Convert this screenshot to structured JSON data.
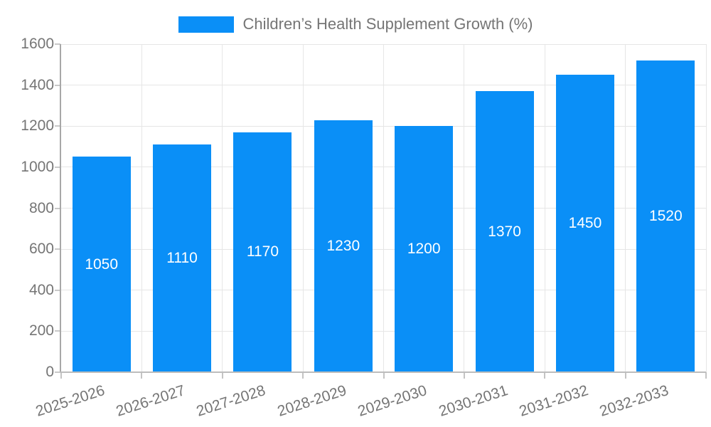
{
  "legend": {
    "label": "Children’s Health Supplement Growth (%)"
  },
  "colors": {
    "bar": "#0a8ff7",
    "axis_text": "#757575",
    "bar_label_text": "#ffffff",
    "gridline": "#e6e6e6",
    "y_axis_line": "#a8a8a8",
    "x_axis_line": "#bdbdbd"
  },
  "chart_data": {
    "type": "bar",
    "title": "Children’s Health Supplement Growth (%)",
    "categories": [
      "2025-2026",
      "2026-2027",
      "2027-2028",
      "2028-2029",
      "2029-2030",
      "2030-2031",
      "2031-2032",
      "2032-2033"
    ],
    "values": [
      1050,
      1110,
      1170,
      1230,
      1200,
      1370,
      1450,
      1520
    ],
    "value_labels": [
      1050,
      1110,
      1170,
      1230,
      1200,
      1370,
      1450,
      1520
    ],
    "xlabel": "",
    "ylabel": "",
    "ylim": [
      0,
      1600
    ],
    "yticks": [
      0,
      200,
      400,
      600,
      800,
      1000,
      1200,
      1400,
      1600
    ],
    "grid": true,
    "legend_position": "top-center",
    "value_label_position": "inside-center",
    "xtick_rotation_deg": -18,
    "bar_color": "#0a8ff7"
  }
}
